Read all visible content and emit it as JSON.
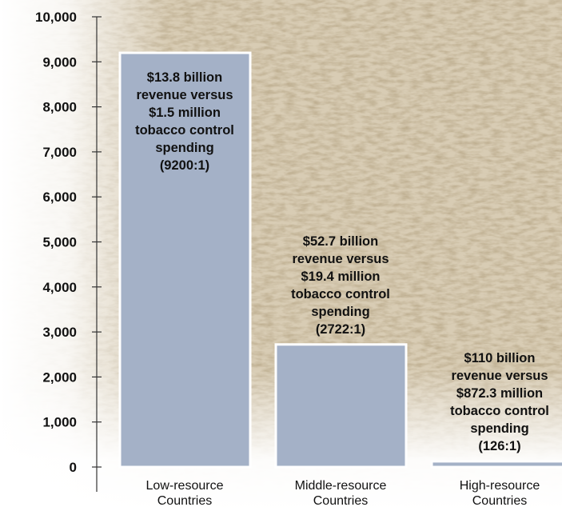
{
  "chart_data": {
    "type": "bar",
    "categories": [
      [
        "Low-resource",
        "Countries"
      ],
      [
        "Middle-resource",
        "Countries"
      ],
      [
        "High-resource",
        "Countries"
      ]
    ],
    "values": [
      9200,
      2722,
      126
    ],
    "ylim": [
      0,
      10000
    ],
    "yticks": [
      "0",
      "1,000",
      "2,000",
      "3,000",
      "4,000",
      "5,000",
      "6,000",
      "7,000",
      "8,000",
      "9,000",
      "10,000"
    ],
    "bar_labels": [
      [
        "$13.8 billion",
        "revenue versus",
        "$1.5 million",
        "tobacco control",
        "spending",
        "(9200:1)"
      ],
      [
        "$52.7 billion",
        "revenue versus",
        "$19.4 million",
        "tobacco control",
        "spending",
        "(2722:1)"
      ],
      [
        "$110 billion",
        "revenue versus",
        "$872.3 million",
        "tobacco control",
        "spending",
        "(126:1)"
      ]
    ],
    "bar_label_position": [
      "inside-top",
      "above",
      "above"
    ],
    "colors": {
      "bar_fill": "#a4b1c7",
      "bar_stroke": "#ffffff",
      "background_texture": "#b49a6c",
      "axis": "#333333"
    }
  }
}
